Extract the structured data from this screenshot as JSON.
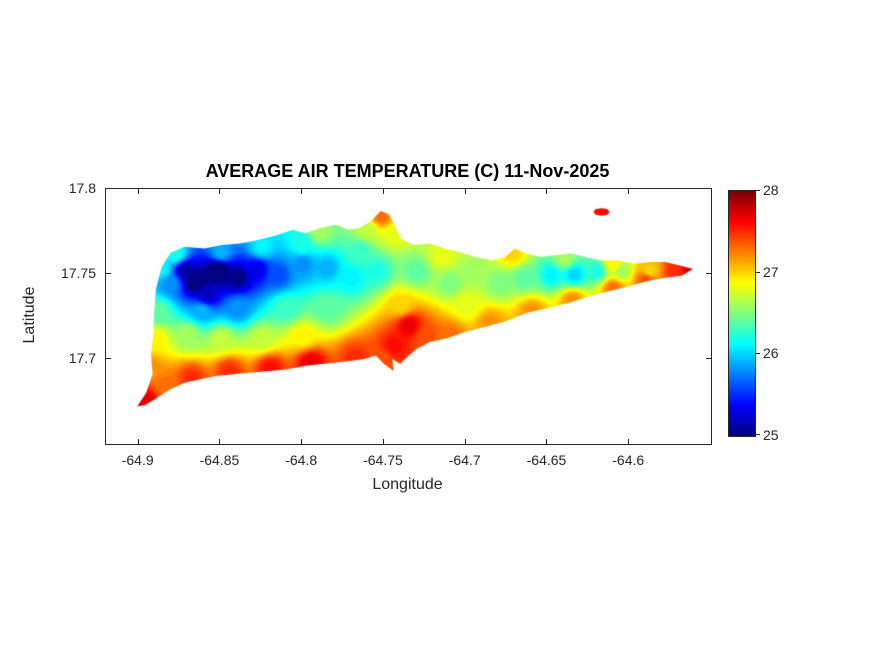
{
  "figure": {
    "background": "#ffffff",
    "axis_color": "#262626",
    "title_color": "#000000"
  },
  "chart_data": {
    "type": "heatmap",
    "title": "AVERAGE AIR TEMPERATURE (C) 11-Nov-2025",
    "xlabel": "Longitude",
    "ylabel": "Latitude",
    "xlim": [
      -64.92,
      -64.55
    ],
    "ylim": [
      17.65,
      17.8
    ],
    "xticks": [
      -64.9,
      -64.85,
      -64.8,
      -64.75,
      -64.7,
      -64.65,
      -64.6
    ],
    "yticks": [
      17.7,
      17.75,
      17.8
    ],
    "grid": false,
    "colormap": "jet",
    "clim": [
      25,
      28
    ],
    "contour_interval": 0.05,
    "colorbar": {
      "position": "right",
      "ticks": [
        25,
        26,
        27,
        28
      ]
    },
    "islands": [
      {
        "name": "main-island",
        "polygon": [
          [
            -64.901,
            17.672
          ],
          [
            -64.8955,
            17.68
          ],
          [
            -64.8915,
            17.691
          ],
          [
            -64.8925,
            17.703
          ],
          [
            -64.891,
            17.7155
          ],
          [
            -64.8905,
            17.728
          ],
          [
            -64.8895,
            17.741
          ],
          [
            -64.886,
            17.754
          ],
          [
            -64.8805,
            17.7625
          ],
          [
            -64.872,
            17.766
          ],
          [
            -64.86,
            17.765
          ],
          [
            -64.849,
            17.767
          ],
          [
            -64.838,
            17.768
          ],
          [
            -64.827,
            17.77
          ],
          [
            -64.815,
            17.773
          ],
          [
            -64.806,
            17.776
          ],
          [
            -64.798,
            17.774
          ],
          [
            -64.789,
            17.777
          ],
          [
            -64.779,
            17.779
          ],
          [
            -64.772,
            17.776
          ],
          [
            -64.765,
            17.777
          ],
          [
            -64.758,
            17.781
          ],
          [
            -64.752,
            17.787
          ],
          [
            -64.747,
            17.785
          ],
          [
            -64.743,
            17.778
          ],
          [
            -64.74,
            17.771
          ],
          [
            -64.732,
            17.767
          ],
          [
            -64.722,
            17.768
          ],
          [
            -64.713,
            17.765
          ],
          [
            -64.704,
            17.763
          ],
          [
            -64.694,
            17.76
          ],
          [
            -64.684,
            17.758
          ],
          [
            -64.676,
            17.76
          ],
          [
            -64.67,
            17.765
          ],
          [
            -64.663,
            17.762
          ],
          [
            -64.654,
            17.76
          ],
          [
            -64.645,
            17.761
          ],
          [
            -64.636,
            17.762
          ],
          [
            -64.627,
            17.76
          ],
          [
            -64.617,
            17.758
          ],
          [
            -64.607,
            17.758
          ],
          [
            -64.597,
            17.756
          ],
          [
            -64.588,
            17.757
          ],
          [
            -64.578,
            17.757
          ],
          [
            -64.569,
            17.755
          ],
          [
            -64.561,
            17.753
          ],
          [
            -64.568,
            17.749
          ],
          [
            -64.577,
            17.748
          ],
          [
            -64.588,
            17.746
          ],
          [
            -64.6,
            17.743
          ],
          [
            -64.612,
            17.74
          ],
          [
            -64.624,
            17.737
          ],
          [
            -64.637,
            17.733
          ],
          [
            -64.65,
            17.73
          ],
          [
            -64.663,
            17.727
          ],
          [
            -64.676,
            17.722
          ],
          [
            -64.688,
            17.719
          ],
          [
            -64.7,
            17.716
          ],
          [
            -64.712,
            17.712
          ],
          [
            -64.722,
            17.71
          ],
          [
            -64.73,
            17.706
          ],
          [
            -64.736,
            17.701
          ],
          [
            -64.74,
            17.697
          ],
          [
            -64.745,
            17.7
          ],
          [
            -64.744,
            17.693
          ],
          [
            -64.75,
            17.697
          ],
          [
            -64.755,
            17.702
          ],
          [
            -64.762,
            17.7
          ],
          [
            -64.77,
            17.699
          ],
          [
            -64.779,
            17.698
          ],
          [
            -64.788,
            17.697
          ],
          [
            -64.798,
            17.696
          ],
          [
            -64.809,
            17.694
          ],
          [
            -64.82,
            17.693
          ],
          [
            -64.831,
            17.692
          ],
          [
            -64.842,
            17.691
          ],
          [
            -64.853,
            17.69
          ],
          [
            -64.863,
            17.688
          ],
          [
            -64.872,
            17.686
          ],
          [
            -64.881,
            17.682
          ],
          [
            -64.889,
            17.677
          ],
          [
            -64.896,
            17.673
          ]
        ]
      },
      {
        "name": "small-island-northeast",
        "polygon": [
          [
            -64.622,
            17.7865
          ],
          [
            -64.6205,
            17.7882
          ],
          [
            -64.617,
            17.7887
          ],
          [
            -64.6135,
            17.7882
          ],
          [
            -64.612,
            17.7865
          ],
          [
            -64.6135,
            17.7848
          ],
          [
            -64.617,
            17.7843
          ],
          [
            -64.6205,
            17.7848
          ]
        ]
      }
    ],
    "samples_format": [
      "lon",
      "lat",
      "temp_c"
    ],
    "samples": [
      [
        -64.866,
        17.746,
        24.8
      ],
      [
        -64.852,
        17.752,
        24.8
      ],
      [
        -64.84,
        17.748,
        25.0
      ],
      [
        -64.872,
        17.752,
        25.1
      ],
      [
        -64.858,
        17.738,
        25.2
      ],
      [
        -64.828,
        17.753,
        25.3
      ],
      [
        -64.815,
        17.75,
        25.6
      ],
      [
        -64.8,
        17.756,
        25.8
      ],
      [
        -64.785,
        17.754,
        25.9
      ],
      [
        -64.84,
        17.73,
        25.8
      ],
      [
        -64.862,
        17.728,
        25.9
      ],
      [
        -64.88,
        17.745,
        25.8
      ],
      [
        -64.886,
        17.753,
        26.1
      ],
      [
        -64.878,
        17.762,
        26.2
      ],
      [
        -64.888,
        17.728,
        26.4
      ],
      [
        -64.89,
        17.712,
        26.9
      ],
      [
        -64.87,
        17.715,
        26.6
      ],
      [
        -64.85,
        17.712,
        26.7
      ],
      [
        -64.825,
        17.712,
        26.7
      ],
      [
        -64.8,
        17.714,
        26.9
      ],
      [
        -64.81,
        17.73,
        26.3
      ],
      [
        -64.785,
        17.73,
        26.4
      ],
      [
        -64.77,
        17.748,
        26.1
      ],
      [
        -64.755,
        17.752,
        26.2
      ],
      [
        -64.765,
        17.764,
        26.3
      ],
      [
        -64.8,
        17.768,
        26.2
      ],
      [
        -64.825,
        17.766,
        26.1
      ],
      [
        -64.85,
        17.763,
        25.9
      ],
      [
        -64.79,
        17.775,
        26.6
      ],
      [
        -64.752,
        17.784,
        27.3
      ],
      [
        -64.744,
        17.774,
        26.8
      ],
      [
        -64.76,
        17.776,
        26.7
      ],
      [
        -64.73,
        17.752,
        26.4
      ],
      [
        -64.715,
        17.76,
        26.8
      ],
      [
        -64.71,
        17.745,
        26.5
      ],
      [
        -64.695,
        17.752,
        26.6
      ],
      [
        -64.68,
        17.745,
        26.5
      ],
      [
        -64.7,
        17.732,
        26.8
      ],
      [
        -64.735,
        17.72,
        27.7
      ],
      [
        -64.744,
        17.708,
        27.6
      ],
      [
        -64.725,
        17.714,
        27.4
      ],
      [
        -64.74,
        17.732,
        27.0
      ],
      [
        -64.896,
        17.676,
        27.7
      ],
      [
        -64.884,
        17.684,
        27.3
      ],
      [
        -64.868,
        17.689,
        27.5
      ],
      [
        -64.845,
        17.693,
        27.5
      ],
      [
        -64.82,
        17.695,
        27.6
      ],
      [
        -64.795,
        17.698,
        27.7
      ],
      [
        -64.768,
        17.701,
        27.5
      ],
      [
        -64.752,
        17.7,
        27.4
      ],
      [
        -64.71,
        17.714,
        27.3
      ],
      [
        -64.685,
        17.721,
        27.2
      ],
      [
        -64.66,
        17.728,
        27.2
      ],
      [
        -64.635,
        17.735,
        27.2
      ],
      [
        -64.61,
        17.742,
        27.3
      ],
      [
        -64.59,
        17.747,
        27.4
      ],
      [
        -64.665,
        17.748,
        26.4
      ],
      [
        -64.648,
        17.75,
        26.1
      ],
      [
        -64.634,
        17.75,
        26.0
      ],
      [
        -64.62,
        17.752,
        26.2
      ],
      [
        -64.605,
        17.752,
        26.6
      ],
      [
        -64.588,
        17.752,
        27.0
      ],
      [
        -64.572,
        17.752,
        27.5
      ],
      [
        -64.562,
        17.753,
        27.8
      ],
      [
        -64.672,
        17.762,
        27.0
      ],
      [
        -64.64,
        17.759,
        26.6
      ],
      [
        -64.61,
        17.756,
        26.9
      ],
      [
        -64.617,
        17.787,
        27.6
      ],
      [
        -64.893,
        17.695,
        27.2
      ]
    ]
  }
}
